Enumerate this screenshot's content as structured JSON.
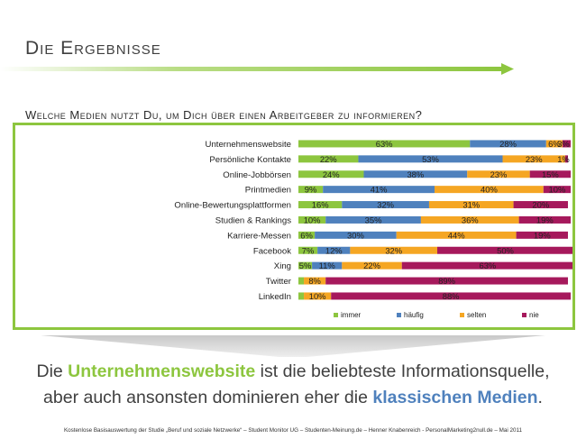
{
  "slide_title": "Die Ergebnisse",
  "question": "Welche Medien nutzt Du, um Dich über einen Arbeitgeber zu informieren?",
  "conclusion": {
    "part1": "Die ",
    "highlight1": "Unternehmenswebsite",
    "part2": " ist die beliebteste Informationsquelle,",
    "part3": "aber auch ansonsten dominieren eher die ",
    "highlight2": "klassischen Medien",
    "part4": "."
  },
  "footer": "Kostenlose Basisauswertung der Studie „Beruf und soziale Netzwerke“ – Student Monitor UG – Studenten-Meinung.de – Henner Knabenreich - PersonalMarketing2null.de – Mai 2011",
  "colors": {
    "accent_green": "#8dc63f",
    "accent_blue": "#4f81bd"
  },
  "chart_data": {
    "type": "bar",
    "orientation": "horizontal",
    "stacked": true,
    "title": "Welche Medien nutzt Du, um Dich über einen Arbeitgeber zu informieren?",
    "categories": [
      "Unternehmenswebsite",
      "Persönliche Kontakte",
      "Online-Jobbörsen",
      "Printmedien",
      "Online-Bewertungsplattformen",
      "Studien & Rankings",
      "Karriere-Messen",
      "Facebook",
      "Xing",
      "Twitter",
      "LinkedIn"
    ],
    "xlim": [
      0,
      100
    ],
    "legend_position": "bottom",
    "series": [
      {
        "name": "immer",
        "color": "#8dc63f",
        "values": [
          63,
          22,
          24,
          9,
          16,
          10,
          6,
          7,
          5,
          2,
          2
        ]
      },
      {
        "name": "häufig",
        "color": "#4f81bd",
        "values": [
          28,
          53,
          38,
          41,
          32,
          35,
          30,
          12,
          11,
          0,
          0
        ]
      },
      {
        "name": "selten",
        "color": "#f5a623",
        "values": [
          6,
          23,
          23,
          40,
          31,
          36,
          44,
          32,
          22,
          8,
          10
        ]
      },
      {
        "name": "nie",
        "color": "#a6195c",
        "values": [
          3,
          1,
          15,
          10,
          20,
          19,
          19,
          50,
          63,
          89,
          88
        ]
      }
    ],
    "labels": [
      [
        "63%",
        "28%",
        "6%",
        "3%"
      ],
      [
        "22%",
        "53%",
        "23%",
        "1%"
      ],
      [
        "24%",
        "38%",
        "23%",
        "15%"
      ],
      [
        "9%",
        "41%",
        "40%",
        "10%"
      ],
      [
        "16%",
        "32%",
        "31%",
        "20%"
      ],
      [
        "10%",
        "35%",
        "36%",
        "19%"
      ],
      [
        "6%",
        "30%",
        "44%",
        "19%"
      ],
      [
        "7%",
        "12%",
        "32%",
        "50%"
      ],
      [
        "5%",
        "11%",
        "22%",
        "63%"
      ],
      [
        "",
        "",
        "8%",
        "89%"
      ],
      [
        "",
        "",
        "10%",
        "88%"
      ]
    ]
  }
}
